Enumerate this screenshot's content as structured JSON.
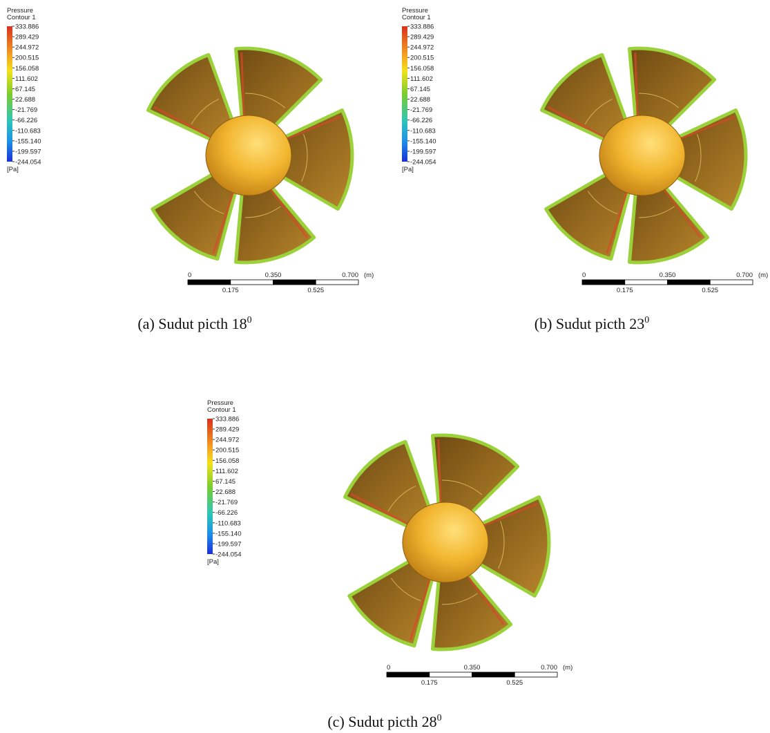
{
  "panels": [
    {
      "legend": {
        "title": [
          "Pressure",
          "Contour 1"
        ],
        "labels": [
          "333.886",
          "289.429",
          "244.972",
          "200.515",
          "156.058",
          "111.602",
          "67.145",
          "22.688",
          "-21.769",
          "-66.226",
          "-110.683",
          "-155.140",
          "-199.597",
          "-244.054"
        ],
        "unit": "[Pa]"
      },
      "scale": {
        "top": [
          "0",
          "0.350",
          "0.700"
        ],
        "unit": "(m)",
        "bottom": [
          "0.175",
          "0.525"
        ]
      },
      "caption": {
        "text": "(a) Sudut picth 18",
        "sup": "0"
      }
    },
    {
      "legend": {
        "title": [
          "Pressure",
          "Contour 1"
        ],
        "labels": [
          "333.886",
          "289.429",
          "244.972",
          "200.515",
          "156.058",
          "111.602",
          "67.145",
          "22.688",
          "-21.769",
          "-66.226",
          "-110.683",
          "-155.140",
          "-199.597",
          "-244.054"
        ],
        "unit": "[Pa]"
      },
      "scale": {
        "top": [
          "0",
          "0.350",
          "0.700"
        ],
        "unit": "(m)",
        "bottom": [
          "0.175",
          "0.525"
        ]
      },
      "caption": {
        "text": "(b) Sudut picth 23",
        "sup": "0"
      }
    },
    {
      "legend": {
        "title": [
          "Pressure",
          "Contour 1"
        ],
        "labels": [
          "333.886",
          "289.429",
          "244.972",
          "200.515",
          "156.058",
          "111.602",
          "67.145",
          "22.688",
          "-21.769",
          "-66.226",
          "-110.683",
          "-155.140",
          "-199.597",
          "-244.054"
        ],
        "unit": "[Pa]"
      },
      "scale": {
        "top": [
          "0",
          "0.350",
          "0.700"
        ],
        "unit": "(m)",
        "bottom": [
          "0.175",
          "0.525"
        ]
      },
      "caption": {
        "text": "(c) Sudut picth 28",
        "sup": "0"
      }
    }
  ]
}
